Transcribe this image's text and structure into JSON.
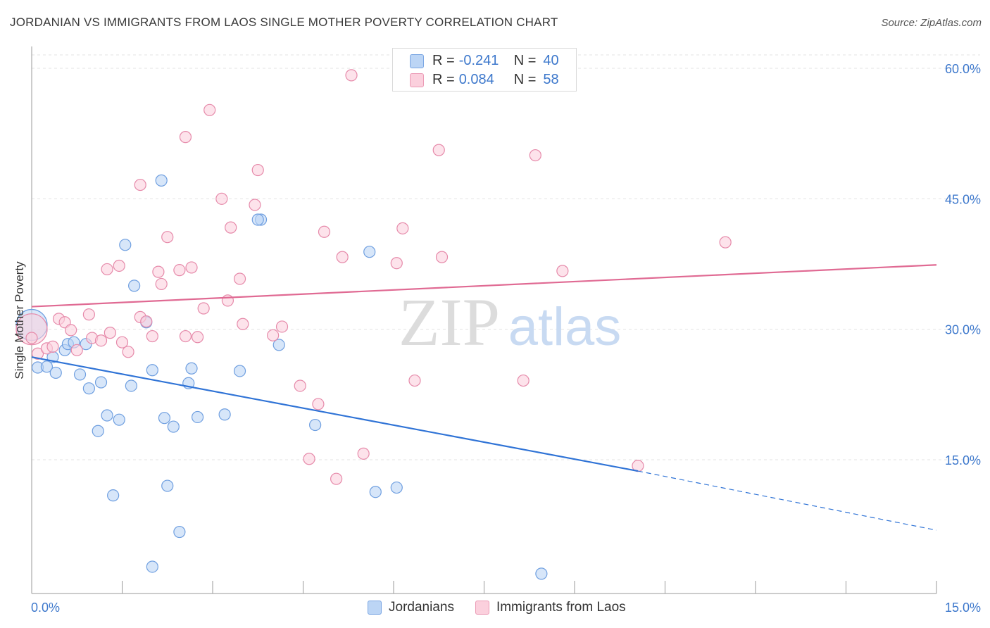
{
  "title": "JORDANIAN VS IMMIGRANTS FROM LAOS SINGLE MOTHER POVERTY CORRELATION CHART",
  "source": "Source: ZipAtlas.com",
  "watermark": {
    "zip": "ZIP",
    "atlas": "atlas"
  },
  "legend": {
    "rows": [
      {
        "r_label": "R =",
        "r_value": "-0.241",
        "n_label": "N =",
        "n_value": "40",
        "color": "#a9c8f0",
        "border": "#6f9fe0"
      },
      {
        "r_label": "R =",
        "r_value": "0.084",
        "n_label": "N =",
        "n_value": "58",
        "color": "#f7bfd0",
        "border": "#e890ad"
      }
    ]
  },
  "bottom_legend": [
    {
      "label": "Jordanians",
      "color": "#bcd5f5",
      "border": "#7aa6e3"
    },
    {
      "label": "Immigrants from Laos",
      "color": "#fbd0dd",
      "border": "#eb9ab5"
    }
  ],
  "chart_data": {
    "type": "scatter",
    "title": "JORDANIAN VS IMMIGRANTS FROM LAOS SINGLE MOTHER POVERTY CORRELATION CHART",
    "xlabel": "",
    "ylabel": "Single Mother Poverty",
    "xlim": [
      0,
      15
    ],
    "ylim": [
      0,
      62
    ],
    "x_tick_labels": [
      "0.0%",
      "15.0%"
    ],
    "y_ticks": [
      15,
      30,
      45,
      60
    ],
    "y_tick_labels": [
      "15.0%",
      "30.0%",
      "45.0%",
      "60.0%"
    ],
    "grid": true,
    "series": [
      {
        "name": "Jordanians",
        "color": "#6f9fe0",
        "fill": "#bcd5f5",
        "points": [
          [
            0.1,
            25.6
          ],
          [
            0.25,
            25.7
          ],
          [
            0.4,
            25.0
          ],
          [
            0.35,
            26.8
          ],
          [
            0.55,
            27.6
          ],
          [
            0.6,
            28.3
          ],
          [
            0.7,
            28.5
          ],
          [
            0.9,
            28.3
          ],
          [
            0.8,
            24.8
          ],
          [
            0.95,
            23.2
          ],
          [
            1.15,
            23.9
          ],
          [
            1.25,
            20.1
          ],
          [
            1.45,
            19.6
          ],
          [
            1.1,
            18.3
          ],
          [
            1.65,
            23.5
          ],
          [
            1.9,
            30.8
          ],
          [
            1.55,
            39.7
          ],
          [
            1.7,
            35.0
          ],
          [
            2.0,
            25.3
          ],
          [
            2.2,
            19.8
          ],
          [
            2.15,
            47.1
          ],
          [
            2.35,
            18.8
          ],
          [
            2.6,
            23.8
          ],
          [
            2.65,
            25.5
          ],
          [
            2.75,
            19.9
          ],
          [
            3.2,
            20.2
          ],
          [
            3.45,
            25.2
          ],
          [
            3.8,
            42.6
          ],
          [
            3.75,
            42.6
          ],
          [
            4.1,
            28.2
          ],
          [
            4.7,
            19.0
          ],
          [
            5.6,
            38.9
          ],
          [
            1.35,
            10.9
          ],
          [
            2.25,
            12.0
          ],
          [
            2.45,
            6.7
          ],
          [
            5.7,
            11.3
          ],
          [
            6.05,
            11.8
          ],
          [
            2.0,
            2.7
          ],
          [
            8.45,
            1.9
          ],
          [
            0.0,
            30.5
          ]
        ],
        "trend": {
          "x1": 0,
          "y1": 26.8,
          "x2": 10.05,
          "y2": 13.7,
          "dash_x2": 15,
          "dash_y2": 6.9
        }
      },
      {
        "name": "Immigrants from Laos",
        "color": "#e68aaa",
        "fill": "#fbd0dd",
        "points": [
          [
            0.0,
            30.0
          ],
          [
            0.1,
            27.2
          ],
          [
            0.25,
            27.8
          ],
          [
            0.35,
            28.0
          ],
          [
            0.45,
            31.2
          ],
          [
            0.55,
            30.8
          ],
          [
            0.65,
            29.9
          ],
          [
            0.75,
            27.6
          ],
          [
            0.95,
            31.7
          ],
          [
            1.0,
            29.0
          ],
          [
            1.15,
            28.7
          ],
          [
            1.3,
            29.6
          ],
          [
            1.5,
            28.5
          ],
          [
            1.6,
            27.4
          ],
          [
            1.25,
            36.9
          ],
          [
            1.45,
            37.3
          ],
          [
            1.8,
            46.6
          ],
          [
            1.8,
            31.4
          ],
          [
            1.9,
            30.9
          ],
          [
            2.0,
            29.2
          ],
          [
            2.1,
            36.6
          ],
          [
            2.15,
            35.2
          ],
          [
            2.25,
            40.6
          ],
          [
            2.45,
            36.8
          ],
          [
            2.55,
            52.1
          ],
          [
            2.65,
            37.1
          ],
          [
            2.75,
            29.1
          ],
          [
            2.55,
            29.2
          ],
          [
            2.85,
            32.4
          ],
          [
            2.95,
            55.2
          ],
          [
            3.15,
            45.0
          ],
          [
            3.25,
            33.3
          ],
          [
            3.3,
            41.7
          ],
          [
            3.45,
            35.8
          ],
          [
            3.5,
            30.6
          ],
          [
            3.7,
            44.3
          ],
          [
            3.75,
            48.3
          ],
          [
            4.0,
            29.3
          ],
          [
            4.15,
            30.3
          ],
          [
            4.45,
            23.5
          ],
          [
            4.6,
            15.1
          ],
          [
            4.75,
            21.4
          ],
          [
            4.85,
            41.2
          ],
          [
            5.05,
            12.8
          ],
          [
            5.15,
            38.3
          ],
          [
            5.3,
            59.2
          ],
          [
            5.5,
            15.7
          ],
          [
            6.05,
            37.6
          ],
          [
            6.15,
            41.6
          ],
          [
            6.35,
            24.1
          ],
          [
            6.75,
            50.6
          ],
          [
            6.8,
            38.3
          ],
          [
            8.15,
            24.1
          ],
          [
            8.35,
            50.0
          ],
          [
            8.8,
            36.7
          ],
          [
            11.5,
            40.0
          ],
          [
            10.05,
            14.3
          ],
          [
            0.0,
            29.0
          ]
        ],
        "trend": {
          "x1": 0,
          "y1": 32.6,
          "x2": 15,
          "y2": 37.4
        }
      }
    ],
    "annotations": [
      "R = -0.241 N = 40",
      "R = 0.084 N = 58"
    ]
  }
}
